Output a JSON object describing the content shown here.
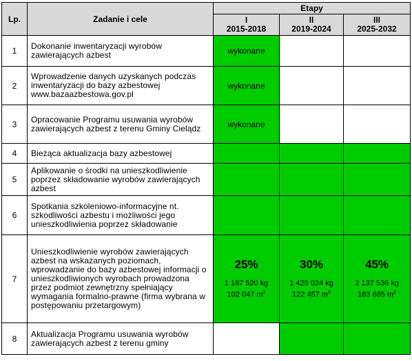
{
  "header": {
    "lp": "Lp.",
    "task": "Zadanie i cele",
    "etapy": "Etapy",
    "stages": [
      {
        "roman": "I",
        "years": "2015-2018"
      },
      {
        "roman": "II",
        "years": "2019-2024"
      },
      {
        "roman": "III",
        "years": "2025-2032"
      }
    ]
  },
  "rows": [
    {
      "lp": "1",
      "task": "Dokonanie inwentaryzacji  wyrobów zawierających azbest",
      "stage1": "wykonane"
    },
    {
      "lp": "2",
      "task": "Wprowadzenie danych uzyskanych podczas inwentaryzacji do bazy azbestowej www.bazaazbestowa.gov.pl",
      "stage1": "wykonane"
    },
    {
      "lp": "3",
      "task": "Opracowanie Programu usuwania wyrobów zawierających azbest z terenu Gminy Cielądz",
      "stage1": "wykonane"
    },
    {
      "lp": "4",
      "task": "Bieżąca aktualizacja  bazy azbestowej"
    },
    {
      "lp": "5",
      "task": "Aplikowanie o środki na unieszkodliwienie poprzez składowanie wyrobów zawierających azbest"
    },
    {
      "lp": "6",
      "task": "Spotkania szkoleniowo-informacyjne nt. szkodliwości azbestu i możliwości jego unieszkodliwienia  poprzez składowanie"
    },
    {
      "lp": "7",
      "task": "Unieszkodliwienie  wyrobów zawierających azbest na wskazanych  poziomach, wprowadzanie do bazy azbestowej informacji o unieszkodliwionych wyrobach prowadzona przez  podmiot zewnętrzny spełniający wymagania formalno-prawne (firma wybrana w postępowaniu przetargowym)",
      "targets": [
        {
          "pct": "25%",
          "kg": "1 187 520 kg",
          "m2": "102 047 m"
        },
        {
          "pct": "30%",
          "kg": "1 425 024 kg",
          "m2": "122 457 m"
        },
        {
          "pct": "45%",
          "kg": "2 137 536 kg",
          "m2": "183 685 m"
        }
      ],
      "m2_sup": "2"
    },
    {
      "lp": "8",
      "task": "Aktualizacja Programu usuwania wyrobów zawierających azbest z terenu gminy"
    }
  ],
  "colors": {
    "green": "#00cc00",
    "header": "#d9d9d9"
  }
}
